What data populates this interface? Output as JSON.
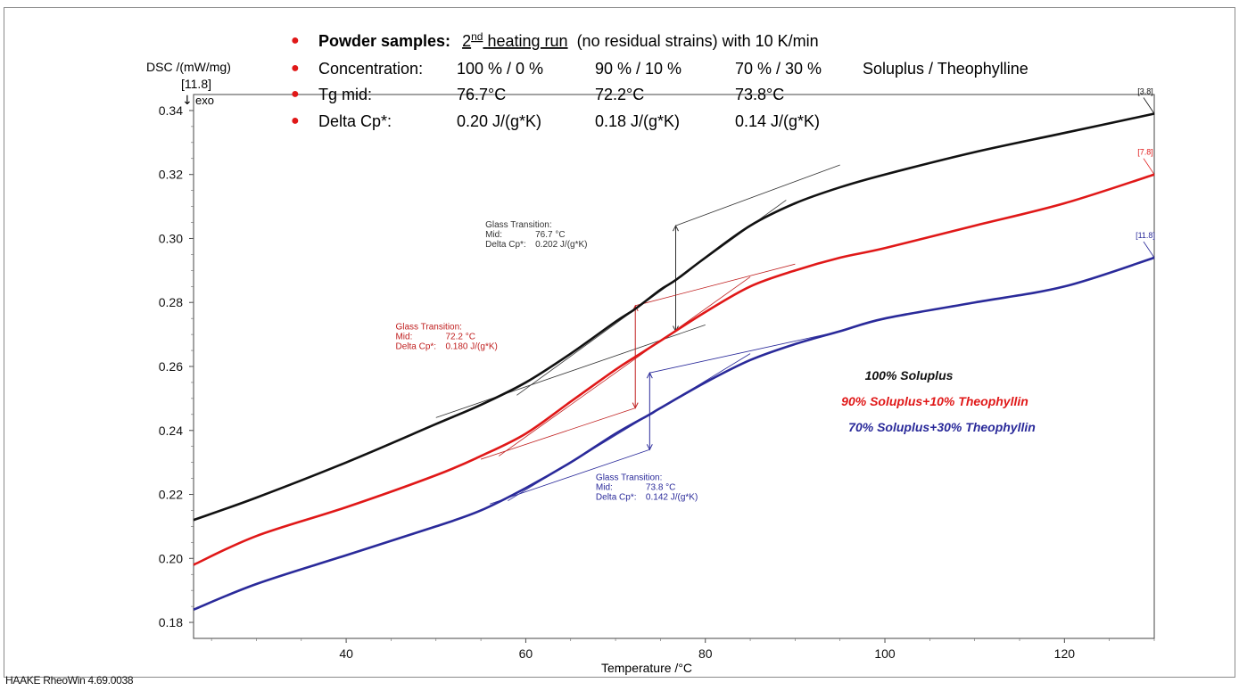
{
  "software": "HAAKE RheoWin 4.69.0038",
  "info": {
    "title_bold": "Powder samples:",
    "title_run_base": "2",
    "title_run_sup": "nd",
    "title_run_rest": "heating run",
    "title_tail": "(no residual strains) with 10 K/min",
    "rows": [
      {
        "label": "Concentration:",
        "c1": "100 % / 0 %",
        "c2": "90 % / 10 %",
        "c3": "70 % / 30 %",
        "c4": "Soluplus / Theophylline"
      },
      {
        "label": "Tg mid:",
        "c1": "76.7°C",
        "c2": "72.2°C",
        "c3": "73.8°C",
        "c4": ""
      },
      {
        "label": "Delta Cp*:",
        "c1": "0.20 J/(g*K)",
        "c2": "0.18 J/(g*K)",
        "c3": "0.14 J/(g*K)",
        "c4": ""
      }
    ],
    "bullet_color": "#e01818"
  },
  "chart_data": {
    "type": "line",
    "ylabel": "DSC /(mW/mg)",
    "ylabel_marker": "[11.8]",
    "exo_label": "exo",
    "xlabel": "Temperature /°C",
    "xlim": [
      23,
      130
    ],
    "ylim": [
      0.175,
      0.345
    ],
    "x_ticks": [
      40,
      60,
      80,
      100,
      120
    ],
    "y_ticks": [
      0.18,
      0.2,
      0.22,
      0.24,
      0.26,
      0.28,
      0.3,
      0.32,
      0.34
    ],
    "y_tick_labels": [
      "0.18",
      "0.20",
      "0.22",
      "0.24",
      "0.26",
      "0.28",
      "0.30",
      "0.32",
      "0.34"
    ],
    "grid": false,
    "legend": {
      "position": "right",
      "entries": [
        {
          "text": "100% Soluplus",
          "color": "#111111"
        },
        {
          "text": "90% Soluplus+10% Theophyllin",
          "color": "#e01818"
        },
        {
          "text": "70% Soluplus+30% Theophyllin",
          "color": "#2a2a9a"
        }
      ]
    },
    "series": [
      {
        "name": "100% Soluplus",
        "color": "#111111",
        "end_tag": "[3.8]",
        "x": [
          23,
          30,
          40,
          50,
          55,
          60,
          65,
          70,
          72.2,
          75,
          76.7,
          80,
          85,
          90,
          95,
          100,
          110,
          120,
          130
        ],
        "y": [
          0.212,
          0.219,
          0.23,
          0.242,
          0.248,
          0.255,
          0.264,
          0.274,
          0.278,
          0.284,
          0.287,
          0.294,
          0.304,
          0.311,
          0.316,
          0.32,
          0.327,
          0.333,
          0.339
        ]
      },
      {
        "name": "90% Soluplus+10% Theophyllin",
        "color": "#e01818",
        "end_tag": "[7.8]",
        "x": [
          23,
          30,
          40,
          50,
          55,
          60,
          65,
          70,
          72.2,
          75,
          80,
          85,
          90,
          95,
          100,
          110,
          120,
          130
        ],
        "y": [
          0.198,
          0.207,
          0.216,
          0.226,
          0.232,
          0.239,
          0.249,
          0.259,
          0.263,
          0.268,
          0.277,
          0.285,
          0.29,
          0.294,
          0.297,
          0.304,
          0.311,
          0.32
        ]
      },
      {
        "name": "70% Soluplus+30% Theophyllin",
        "color": "#2a2a9a",
        "end_tag": "[11.8]",
        "x": [
          23,
          30,
          40,
          50,
          55,
          60,
          65,
          70,
          73.8,
          75,
          80,
          85,
          90,
          95,
          100,
          110,
          120,
          130
        ],
        "y": [
          0.184,
          0.192,
          0.201,
          0.21,
          0.215,
          0.222,
          0.23,
          0.239,
          0.245,
          0.247,
          0.255,
          0.262,
          0.267,
          0.271,
          0.275,
          0.28,
          0.285,
          0.294
        ]
      }
    ],
    "annotations": [
      {
        "series_index": 0,
        "color": "#333333",
        "title": "Glass Transition:",
        "mid_label": "Mid:",
        "mid_value": "76.7 °C",
        "cp_label": "Delta Cp*:",
        "cp_value": "0.202 J/(g*K)",
        "anchor_x": 55.5,
        "anchor_y": 0.3035,
        "tg": 76.7,
        "step_y": [
          0.271,
          0.304
        ],
        "tangent_low": [
          [
            50,
            0.244
          ],
          [
            80,
            0.273
          ]
        ],
        "tangent_high": [
          [
            76.7,
            0.304
          ],
          [
            95,
            0.323
          ]
        ],
        "inflection": [
          [
            59,
            0.251
          ],
          [
            89,
            0.312
          ]
        ]
      },
      {
        "series_index": 1,
        "color": "#c02020",
        "title": "Glass Transition:",
        "mid_label": "Mid:",
        "mid_value": "72.2 °C",
        "cp_label": "Delta Cp*:",
        "cp_value": "0.180 J/(g*K)",
        "anchor_x": 45.5,
        "anchor_y": 0.2715,
        "tg": 72.2,
        "step_y": [
          0.247,
          0.279
        ],
        "tangent_low": [
          [
            55,
            0.231
          ],
          [
            72.2,
            0.247
          ]
        ],
        "tangent_high": [
          [
            72.2,
            0.279
          ],
          [
            90,
            0.292
          ]
        ],
        "inflection": [
          [
            57,
            0.232
          ],
          [
            85,
            0.288
          ]
        ]
      },
      {
        "series_index": 2,
        "color": "#2a2a9a",
        "title": "Glass Transition:",
        "mid_label": "Mid:",
        "mid_value": "73.8 °C",
        "cp_label": "Delta Cp*:",
        "cp_value": "0.142 J/(g*K)",
        "anchor_x": 67.8,
        "anchor_y": 0.2245,
        "tg": 73.8,
        "step_y": [
          0.234,
          0.258
        ],
        "tangent_low": [
          [
            56,
            0.217
          ],
          [
            73.8,
            0.234
          ]
        ],
        "tangent_high": [
          [
            73.8,
            0.258
          ],
          [
            95,
            0.271
          ]
        ],
        "inflection": [
          [
            58,
            0.218
          ],
          [
            85,
            0.264
          ]
        ]
      }
    ]
  }
}
